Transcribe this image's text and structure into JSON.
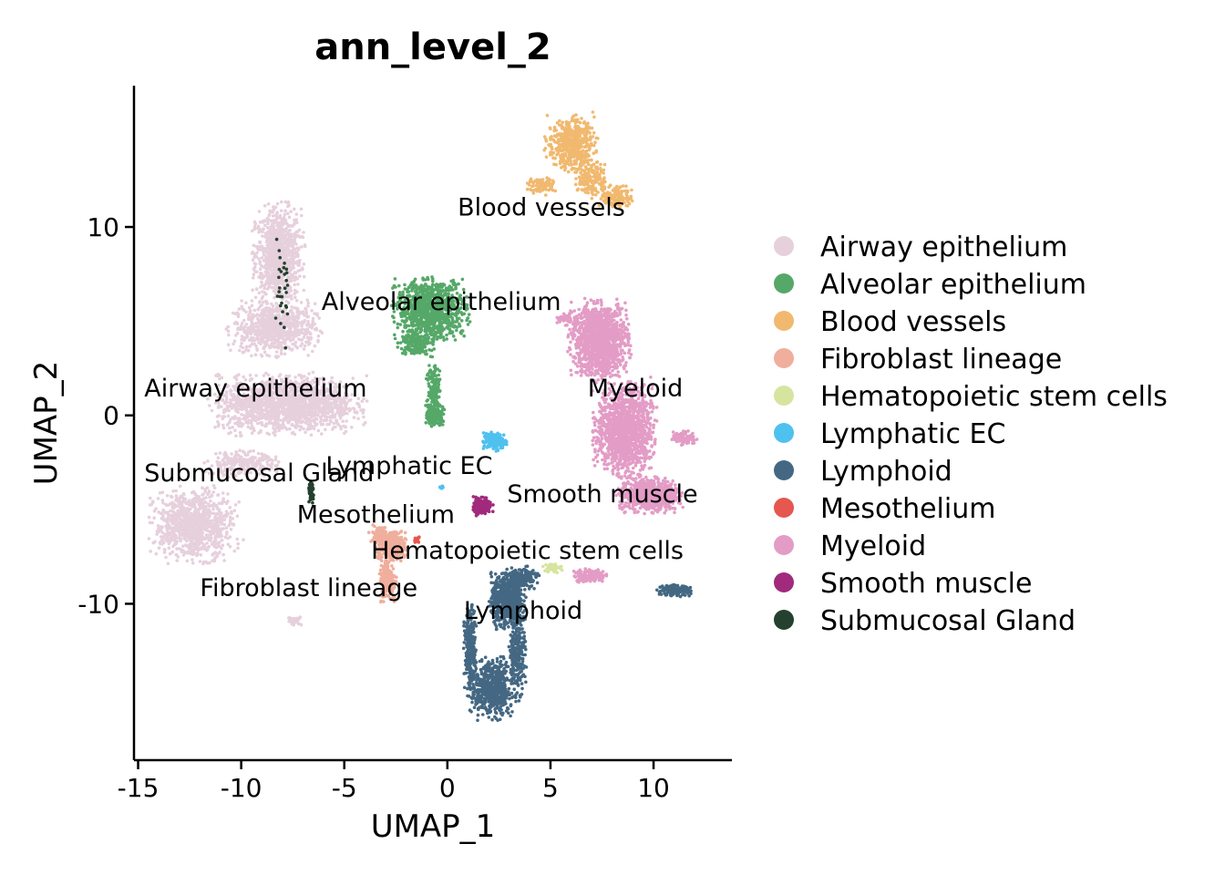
{
  "chart_data": {
    "type": "scatter",
    "title": "ann_level_2",
    "xlabel": "UMAP_1",
    "ylabel": "UMAP_2",
    "xlim": [
      -15.2,
      13.8
    ],
    "ylim": [
      -18.3,
      17.5
    ],
    "x_ticks": [
      -15,
      -10,
      -5,
      0,
      5,
      10
    ],
    "x_tick_labels": [
      "-15",
      "-10",
      "-5",
      "0",
      "5",
      "10"
    ],
    "y_ticks": [
      -10,
      0,
      10
    ],
    "y_tick_labels": [
      "-10",
      "0",
      "10"
    ],
    "grid": false,
    "legend_position": "right",
    "series": [
      {
        "name": "Airway epithelium",
        "color": "#E6D0DC",
        "blobs": [
          [
            -8.2,
            8.5,
            1.0,
            2.2,
            900
          ],
          [
            -8.4,
            4.6,
            1.8,
            1.2,
            700
          ],
          [
            -7.8,
            0.6,
            3.0,
            1.3,
            1500
          ],
          [
            -12.3,
            -5.8,
            1.7,
            1.6,
            900
          ],
          [
            -10.0,
            -2.6,
            1.5,
            0.6,
            250
          ],
          [
            -7.4,
            -10.9,
            0.3,
            0.2,
            30
          ]
        ],
        "label": "Airway epithelium",
        "label_pos": [
          -14.7,
          1.0
        ],
        "label_anchor": "start"
      },
      {
        "name": "Alveolar epithelium",
        "color": "#55A868",
        "blobs": [
          [
            -0.8,
            5.6,
            1.5,
            1.4,
            1000
          ],
          [
            -1.5,
            3.8,
            0.7,
            0.5,
            150
          ],
          [
            -0.7,
            1.5,
            0.3,
            1.3,
            150
          ],
          [
            -0.6,
            0.0,
            0.35,
            0.5,
            150
          ]
        ],
        "label": "Alveolar epithelium",
        "label_pos": [
          -6.1,
          5.6
        ],
        "label_anchor": "start"
      },
      {
        "name": "Blood vessels",
        "color": "#F1B96F",
        "blobs": [
          [
            6.0,
            14.4,
            1.0,
            1.2,
            500
          ],
          [
            7.0,
            12.6,
            0.6,
            0.9,
            150
          ],
          [
            8.2,
            11.6,
            0.7,
            0.5,
            150
          ],
          [
            4.6,
            12.2,
            0.6,
            0.4,
            80
          ]
        ],
        "label": "Blood vessels",
        "label_pos": [
          0.5,
          10.6
        ],
        "label_anchor": "start"
      },
      {
        "name": "Fibroblast lineage",
        "color": "#F0AE9C",
        "blobs": [
          [
            -2.7,
            -7.0,
            0.6,
            0.7,
            300
          ],
          [
            -2.9,
            -8.7,
            0.35,
            1.0,
            200
          ],
          [
            -3.3,
            -6.3,
            0.4,
            0.4,
            80
          ]
        ],
        "label": "Fibroblast lineage",
        "label_pos": [
          -12.0,
          -9.6
        ],
        "label_anchor": "start"
      },
      {
        "name": "Hematopoietic stem cells",
        "color": "#D6E4A0",
        "blobs": [
          [
            5.1,
            -8.1,
            0.4,
            0.2,
            40
          ]
        ],
        "label": "Hematopoietic stem cells",
        "label_pos": [
          -3.7,
          -7.6
        ],
        "label_anchor": "start"
      },
      {
        "name": "Lymphatic EC",
        "color": "#4FC1EE",
        "blobs": [
          [
            2.3,
            -1.4,
            0.5,
            0.4,
            150
          ],
          [
            -0.3,
            -3.8,
            0.1,
            0.1,
            10
          ]
        ],
        "label": "Lymphatic EC",
        "label_pos": [
          -5.9,
          -3.1
        ],
        "label_anchor": "start"
      },
      {
        "name": "Lymphoid",
        "color": "#446883",
        "blobs": [
          [
            2.9,
            -9.8,
            0.7,
            1.2,
            700
          ],
          [
            2.2,
            -14.5,
            0.9,
            1.3,
            600
          ],
          [
            1.1,
            -12.5,
            0.25,
            2.0,
            250
          ],
          [
            3.4,
            -12.4,
            0.35,
            2.0,
            250
          ],
          [
            3.6,
            -8.6,
            0.7,
            0.5,
            150
          ],
          [
            11.0,
            -9.3,
            0.7,
            0.25,
            150
          ]
        ],
        "label": "Lymphoid",
        "label_pos": [
          0.8,
          -10.8
        ],
        "label_anchor": "start"
      },
      {
        "name": "Mesothelium",
        "color": "#E5574F",
        "blobs": [
          [
            -1.5,
            -6.6,
            0.15,
            0.15,
            15
          ]
        ],
        "label": "Mesothelium",
        "label_pos": [
          -7.3,
          -5.7
        ],
        "label_anchor": "start"
      },
      {
        "name": "Myeloid",
        "color": "#E39CC6",
        "blobs": [
          [
            7.4,
            4.0,
            1.2,
            1.7,
            1300
          ],
          [
            8.6,
            -0.8,
            1.2,
            2.0,
            1300
          ],
          [
            9.8,
            -4.2,
            1.3,
            0.8,
            700
          ],
          [
            11.5,
            -1.2,
            0.5,
            0.3,
            100
          ],
          [
            6.9,
            -8.5,
            0.7,
            0.3,
            150
          ],
          [
            5.8,
            5.1,
            0.6,
            0.3,
            50
          ]
        ],
        "label": "Myeloid",
        "label_pos": [
          6.8,
          1.0
        ],
        "label_anchor": "start"
      },
      {
        "name": "Smooth muscle",
        "color": "#A12A7D",
        "blobs": [
          [
            1.7,
            -4.8,
            0.4,
            0.4,
            180
          ]
        ],
        "label": "Smooth muscle",
        "label_pos": [
          2.9,
          -4.6
        ],
        "label_anchor": "start"
      },
      {
        "name": "Submucosal Gland",
        "color": "#24412F",
        "blobs": [
          [
            -6.6,
            -4.1,
            0.12,
            0.5,
            70
          ],
          [
            -8.0,
            6.0,
            0.4,
            3.0,
            30
          ]
        ],
        "label": "Submucosal Gland",
        "label_pos": [
          -14.7,
          -3.5
        ],
        "label_anchor": "start"
      }
    ]
  }
}
